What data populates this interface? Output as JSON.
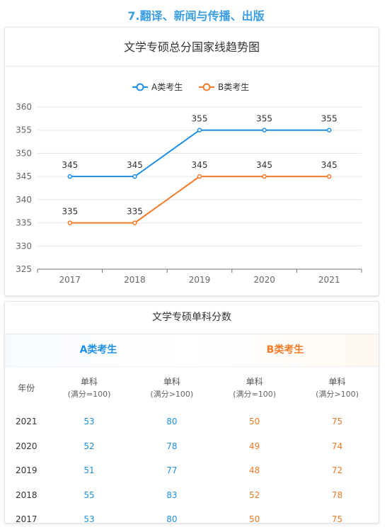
{
  "page_title": "7.翻译、新闻与传播、出版",
  "chart_data": {
    "type": "line",
    "title": "文学专硕总分国家线趋势图",
    "categories": [
      "2017",
      "2018",
      "2019",
      "2020",
      "2021"
    ],
    "series": [
      {
        "name": "A类考生",
        "color": "#1e8fe8",
        "values": [
          345,
          345,
          355,
          355,
          355
        ]
      },
      {
        "name": "B类考生",
        "color": "#f37a26",
        "values": [
          335,
          335,
          345,
          345,
          345
        ]
      }
    ],
    "ylim": [
      325,
      360
    ],
    "yticks": [
      "325",
      "330",
      "335",
      "340",
      "345",
      "350",
      "355",
      "360"
    ],
    "grid": true,
    "legend": "top-center"
  },
  "table": {
    "title": "文学专硕单科分数",
    "group_a": "A类考生",
    "group_b": "B类考生",
    "col_year": "年份",
    "col_sub": "单科",
    "full100": "(满分=100)",
    "full_gt100": "(满分>100)",
    "rows": [
      {
        "year": "2021",
        "a1": "53",
        "a2": "80",
        "b1": "50",
        "b2": "75"
      },
      {
        "year": "2020",
        "a1": "52",
        "a2": "78",
        "b1": "49",
        "b2": "74"
      },
      {
        "year": "2019",
        "a1": "51",
        "a2": "77",
        "b1": "48",
        "b2": "72"
      },
      {
        "year": "2018",
        "a1": "55",
        "a2": "83",
        "b1": "52",
        "b2": "78"
      },
      {
        "year": "2017",
        "a1": "53",
        "a2": "80",
        "b1": "50",
        "b2": "75"
      }
    ]
  }
}
